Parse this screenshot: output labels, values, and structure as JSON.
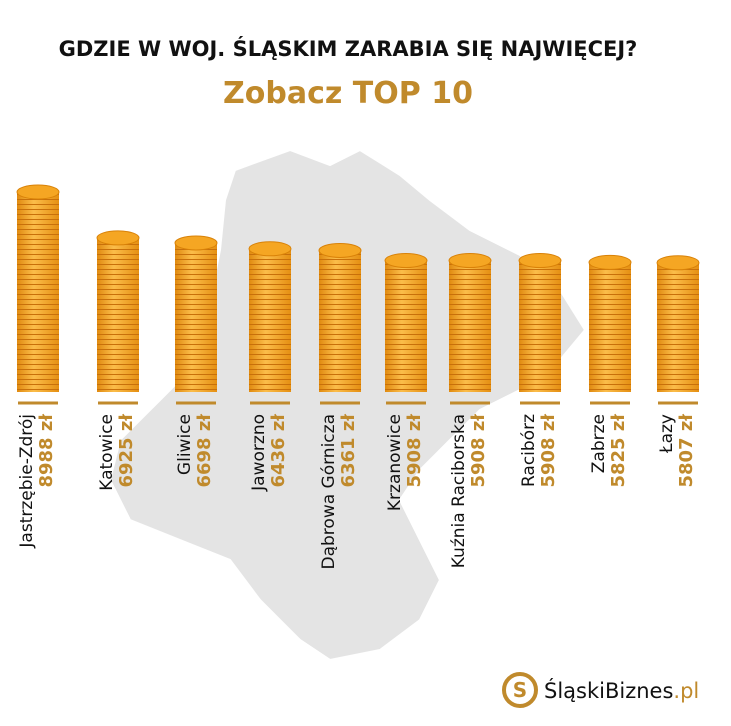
{
  "chart_data": {
    "type": "bar",
    "title": "GDZIE W WOJ. ŚLĄSKIM ZARABIA SIĘ NAJWIĘCEJ?",
    "subtitle": "Zobacz TOP 10",
    "categories": [
      "Jastrzębie-Zdrój",
      "Katowice",
      "Gliwice",
      "Jaworzno",
      "Dąbrowa Górnicza",
      "Krzanowice",
      "Kuźnia Raciborska",
      "Racibórz",
      "Zabrze",
      "Łazy"
    ],
    "values": [
      8988,
      6925,
      6698,
      6436,
      6361,
      5908,
      5908,
      5908,
      5825,
      5807
    ],
    "value_labels": [
      "8988 zł",
      "6925 zł",
      "6698 zł",
      "6436 zł",
      "6361 zł",
      "5908 zł",
      "5908 zł",
      "5908 zł",
      "5825 zł",
      "5807 zł"
    ],
    "color": "#f5a623"
  },
  "brand": {
    "name": "ŚląskiBiznes",
    "suffix": ".pl"
  }
}
